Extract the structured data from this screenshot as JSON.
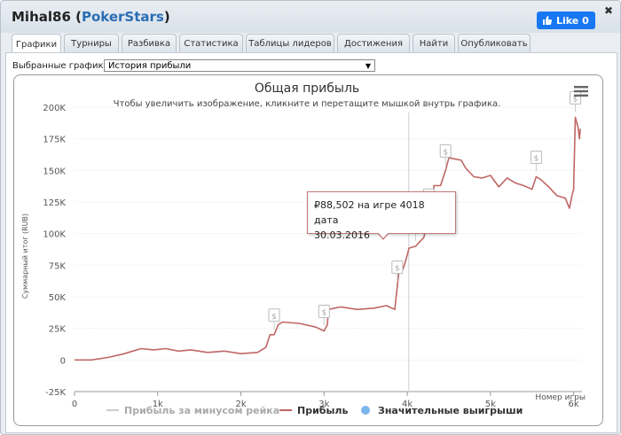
{
  "window": {
    "player": "Mihal86",
    "site": "PokerStars",
    "like_label": "Like 0",
    "close_glyph": "✖"
  },
  "tabs": [
    "Графики",
    "Турниры",
    "Разбивка",
    "Статистика",
    "Таблицы лидеров",
    "Достижения",
    "Найти",
    "Опубликовать"
  ],
  "active_tab": 0,
  "selector": {
    "label": "Выбранные графики:",
    "value": "История прибыли"
  },
  "chart_data": {
    "type": "line",
    "title": "Общая прибыль",
    "subtitle": "Чтобы увеличить изображение, кликните и перетащите мышкой внутрь графика.",
    "ylabel": "Суммарный итог (RUB)",
    "xlabel": "Номер игры",
    "x_ticks": [
      "0",
      "1k",
      "2k",
      "3k",
      "4k",
      "5k",
      "6k"
    ],
    "y_ticks": [
      "-25K",
      "0",
      "25K",
      "50K",
      "75K",
      "100K",
      "125K",
      "150K",
      "175K",
      "200K"
    ],
    "xlim": [
      0,
      6100
    ],
    "ylim": [
      -25000,
      200000
    ],
    "grid": true,
    "legend_placement": "bottom",
    "legend": [
      "Прибыль за минусом рейка",
      "Прибыль",
      "Значительные выигрыши"
    ],
    "series": [
      {
        "name": "Прибыль",
        "color": "#c06666",
        "points": [
          [
            0,
            0
          ],
          [
            200,
            0
          ],
          [
            400,
            2000
          ],
          [
            600,
            5000
          ],
          [
            700,
            7000
          ],
          [
            800,
            9000
          ],
          [
            950,
            8000
          ],
          [
            1100,
            9000
          ],
          [
            1250,
            7000
          ],
          [
            1400,
            8000
          ],
          [
            1600,
            6000
          ],
          [
            1800,
            7000
          ],
          [
            2000,
            5000
          ],
          [
            2200,
            6000
          ],
          [
            2300,
            10000
          ],
          [
            2350,
            20000
          ],
          [
            2400,
            20000
          ],
          [
            2450,
            28000
          ],
          [
            2500,
            30000
          ],
          [
            2700,
            29000
          ],
          [
            2900,
            26000
          ],
          [
            3000,
            23000
          ],
          [
            3040,
            28000
          ],
          [
            3050,
            40000
          ],
          [
            3200,
            42000
          ],
          [
            3400,
            40000
          ],
          [
            3600,
            41000
          ],
          [
            3750,
            43000
          ],
          [
            3850,
            40000
          ],
          [
            3880,
            58000
          ],
          [
            3900,
            70000
          ],
          [
            3950,
            72000
          ],
          [
            4000,
            83000
          ],
          [
            4020,
            88502
          ],
          [
            4100,
            90000
          ],
          [
            4200,
            97000
          ],
          [
            4260,
            115000
          ],
          [
            4300,
            120000
          ],
          [
            4320,
            138000
          ],
          [
            4400,
            138000
          ],
          [
            4460,
            150000
          ],
          [
            4500,
            160000
          ],
          [
            4650,
            158000
          ],
          [
            4700,
            152000
          ],
          [
            4800,
            145000
          ],
          [
            4900,
            144000
          ],
          [
            5000,
            146000
          ],
          [
            5100,
            137000
          ],
          [
            5200,
            144000
          ],
          [
            5300,
            140000
          ],
          [
            5400,
            138000
          ],
          [
            5500,
            135000
          ],
          [
            5550,
            145000
          ],
          [
            5600,
            143000
          ],
          [
            5700,
            137000
          ],
          [
            5800,
            130000
          ],
          [
            5900,
            128000
          ],
          [
            5950,
            120000
          ],
          [
            5980,
            130000
          ],
          [
            6000,
            135000
          ],
          [
            6020,
            192000
          ],
          [
            6050,
            185000
          ],
          [
            6070,
            175000
          ],
          [
            6080,
            183000
          ]
        ]
      },
      {
        "name": "Прибыль за минусом рейка",
        "color": "#cccccc",
        "points": []
      },
      {
        "name": "Значительные выигрыши",
        "color": "#7cb5ec",
        "marker_x": [
          2400,
          3000,
          3880,
          4100,
          4260,
          4460,
          5550,
          6020
        ]
      }
    ],
    "crosshair_x": 4018,
    "tooltip": {
      "line1": "₽88,502 на игре 4018 дата",
      "line2": "30.03.2016"
    }
  }
}
